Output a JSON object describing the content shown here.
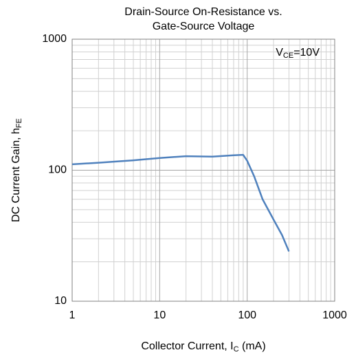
{
  "chart_data": {
    "type": "line",
    "title": [
      "Drain-Source On-Resistance vs.",
      "Gate-Source Voltage"
    ],
    "xlabel": [
      "Collector Current, I",
      "C",
      " (mA)"
    ],
    "ylabel": [
      "DC Current Gain, h",
      "FE"
    ],
    "annotation": [
      "V",
      "CE",
      "=10V"
    ],
    "x": [
      1,
      2,
      5,
      10,
      20,
      40,
      70,
      90,
      100,
      120,
      150,
      200,
      250,
      300
    ],
    "series": [
      {
        "name": "hFE",
        "color": "#4f81bd",
        "values": [
          111,
          114,
          119,
          124,
          128,
          127,
          130,
          131,
          118,
          90,
          60,
          42,
          32,
          24
        ]
      }
    ],
    "xlim": [
      1,
      1000
    ],
    "xticks": [
      1,
      10,
      100,
      1000
    ],
    "ylim": [
      10,
      1000
    ],
    "yticks": [
      10,
      100,
      1000
    ],
    "xscale": "log",
    "yscale": "log",
    "grid": true,
    "minor_grid": true
  }
}
